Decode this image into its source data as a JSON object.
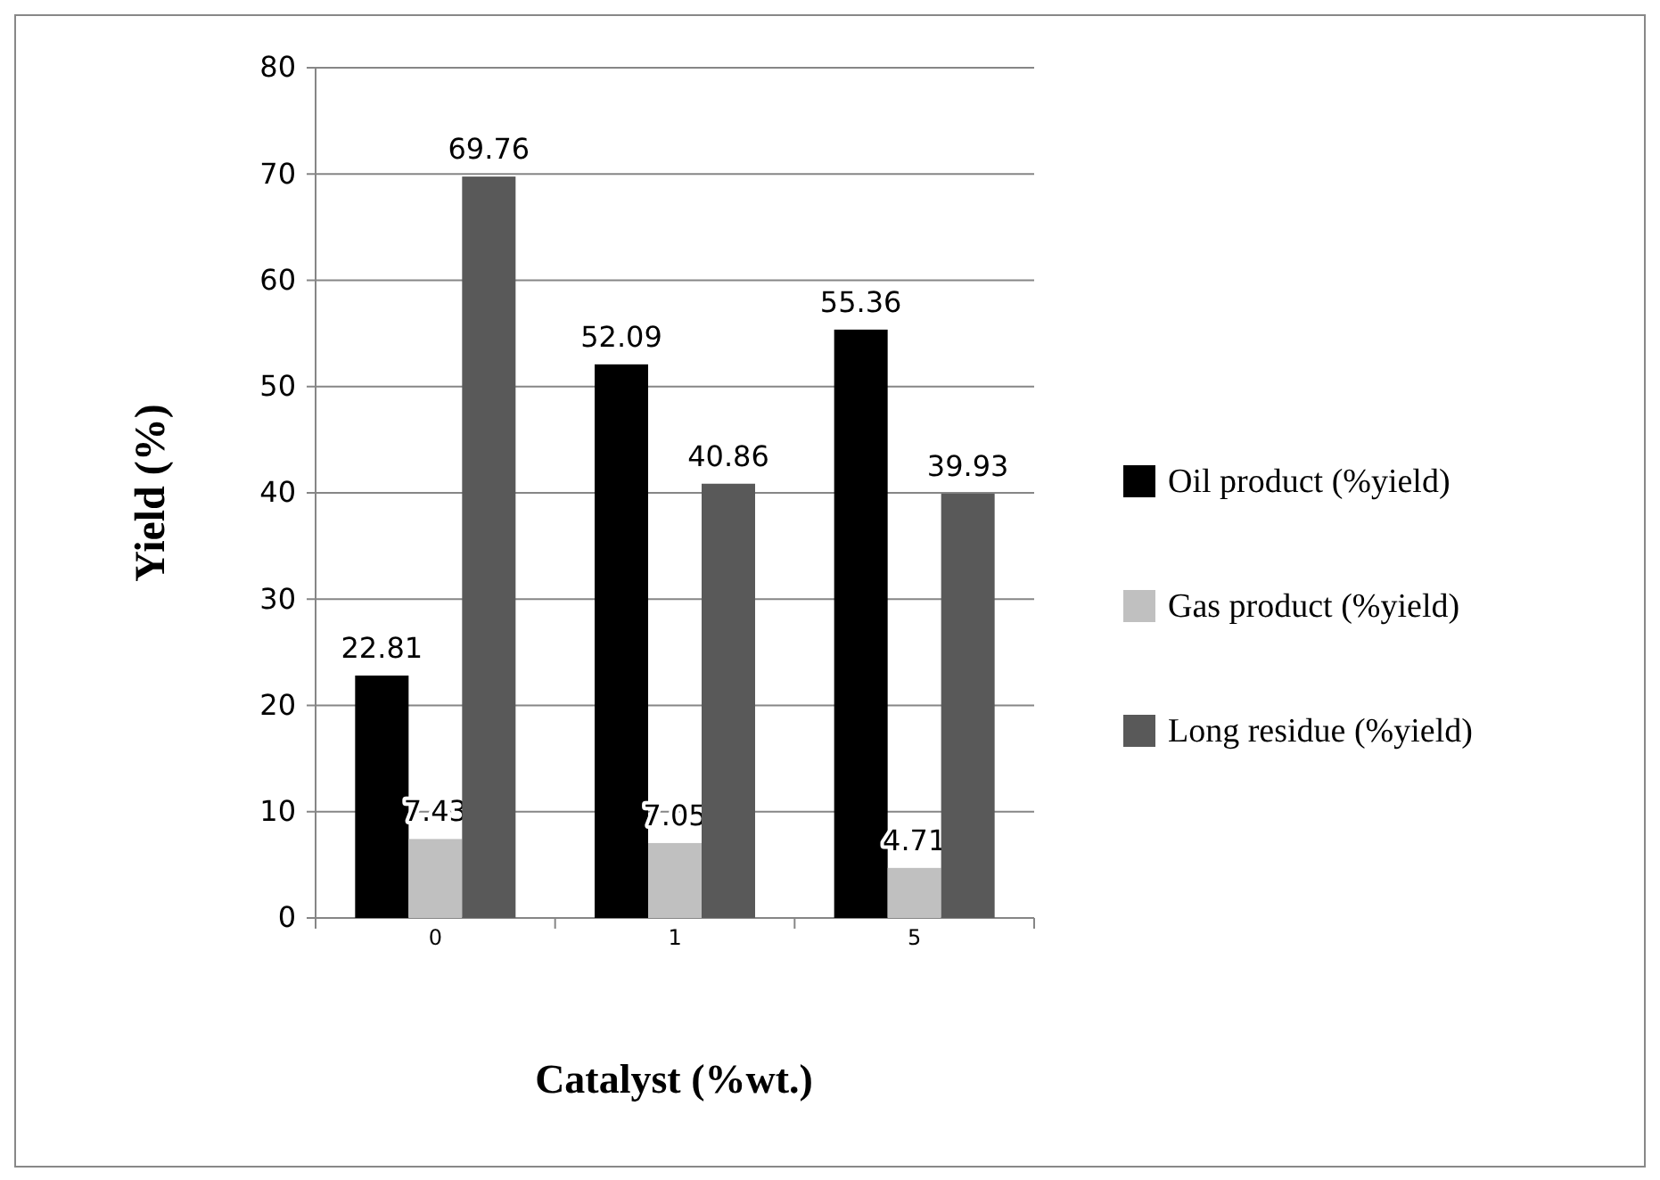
{
  "chart_data": {
    "type": "bar",
    "xlabel": "Catalyst (%wt.)",
    "ylabel": "Yield (%)",
    "categories": [
      "0",
      "1",
      "5"
    ],
    "series": [
      {
        "name": "Oil product (%yield)",
        "color": "#000000",
        "values": [
          22.81,
          52.09,
          55.36
        ]
      },
      {
        "name": "Gas product (%yield)",
        "color": "#c0c0c0",
        "values": [
          7.43,
          7.05,
          4.71
        ]
      },
      {
        "name": "Long residue (%yield)",
        "color": "#595959",
        "values": [
          69.76,
          40.86,
          39.93
        ]
      }
    ],
    "ylim": [
      0,
      80
    ],
    "yticks": [
      0,
      10,
      20,
      30,
      40,
      50,
      60,
      70,
      80
    ],
    "grid": "y",
    "legend": "right",
    "data_labels": true
  }
}
